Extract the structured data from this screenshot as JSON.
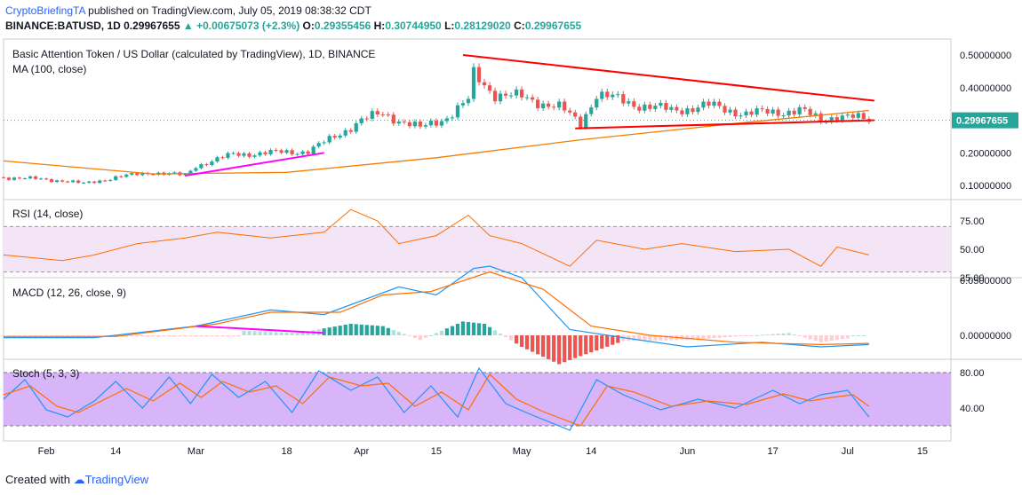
{
  "header": {
    "publisher": "CryptoBriefingTA",
    "published_text": "published on TradingView.com, July 05, 2019 08:38:32 CDT",
    "symbol_line": "BINANCE:BATUSD, 1D",
    "last": "0.29967655",
    "change": "+0.00675073 (+2.3%)",
    "open_label": "O:",
    "open": "0.29355456",
    "high_label": "H:",
    "high": "0.30744950",
    "low_label": "L:",
    "low": "0.28129020",
    "close_label": "C:",
    "close": "0.29967655"
  },
  "colors": {
    "up": "#26a69a",
    "down": "#ef5350",
    "ma": "#f57c00",
    "trend": "#ff0000",
    "magenta": "#ff00ff",
    "macd": "#2196f3",
    "signal": "#ff6d00",
    "osc_fill": "#e1bee7",
    "stoch_fill": "#d8b4f8"
  },
  "panes": {
    "main_title": "Basic Attention Token / US Dollar (calculated by TradingView), 1D, BINANCE",
    "ma_label": "MA (100, close)",
    "rsi_label": "RSI (14, close)",
    "macd_label": "MACD (12, 26, close, 9)",
    "stoch_label": "Stoch (5, 3, 3)"
  },
  "footer": {
    "created_with": "Created with",
    "brand": "TradingView"
  },
  "chart_data": [
    {
      "type": "candlestick",
      "title": "Basic Attention Token / US Dollar (calculated by TradingView), 1D, BINANCE",
      "x_ticks": [
        "Feb",
        "14",
        "Mar",
        "18",
        "Apr",
        "15",
        "May",
        "14",
        "Jun",
        "17",
        "Jul",
        "15"
      ],
      "y_ticks": [
        "0.50000000",
        "0.40000000",
        "0.30000000",
        "0.20000000",
        "0.10000000"
      ],
      "last_price_label": "0.29967655",
      "close_path": [
        [
          "2019-01-24",
          0.125
        ],
        [
          "2019-02-04",
          0.115
        ],
        [
          "2019-02-08",
          0.105
        ],
        [
          "2019-02-14",
          0.125
        ],
        [
          "2019-02-21",
          0.14
        ],
        [
          "2019-02-27",
          0.13
        ],
        [
          "2019-03-01",
          0.16
        ],
        [
          "2019-03-08",
          0.195
        ],
        [
          "2019-03-15",
          0.2
        ],
        [
          "2019-03-22",
          0.205
        ],
        [
          "2019-03-26",
          0.24
        ],
        [
          "2019-04-01",
          0.3
        ],
        [
          "2019-04-05",
          0.32
        ],
        [
          "2019-04-12",
          0.275
        ],
        [
          "2019-04-17",
          0.31
        ],
        [
          "2019-04-21",
          0.36
        ],
        [
          "2019-04-22",
          0.44
        ],
        [
          "2019-04-26",
          0.38
        ],
        [
          "2019-05-01",
          0.37
        ],
        [
          "2019-05-08",
          0.34
        ],
        [
          "2019-05-12",
          0.29
        ],
        [
          "2019-05-15",
          0.38
        ],
        [
          "2019-05-22",
          0.35
        ],
        [
          "2019-05-29",
          0.33
        ],
        [
          "2019-06-05",
          0.345
        ],
        [
          "2019-06-12",
          0.32
        ],
        [
          "2019-06-17",
          0.325
        ],
        [
          "2019-06-22",
          0.33
        ],
        [
          "2019-06-26",
          0.3
        ],
        [
          "2019-06-29",
          0.315
        ],
        [
          "2019-07-05",
          0.29967655
        ]
      ],
      "ma100_path": [
        [
          "2019-01-24",
          0.175
        ],
        [
          "2019-02-21",
          0.135
        ],
        [
          "2019-03-18",
          0.14
        ],
        [
          "2019-04-15",
          0.185
        ],
        [
          "2019-05-12",
          0.24
        ],
        [
          "2019-06-10",
          0.29
        ],
        [
          "2019-07-05",
          0.33
        ]
      ],
      "trendlines": [
        {
          "color": "trend",
          "points": [
            [
              "2019-04-20",
              0.5
            ],
            [
              "2019-07-06",
              0.36
            ]
          ]
        },
        {
          "color": "trend",
          "points": [
            [
              "2019-05-11",
              0.275
            ],
            [
              "2019-07-06",
              0.3
            ]
          ]
        },
        {
          "color": "magenta",
          "points": [
            [
              "2019-02-27",
              0.13
            ],
            [
              "2019-03-25",
              0.2
            ]
          ]
        }
      ]
    },
    {
      "type": "line",
      "title": "RSI (14, close)",
      "y_ticks": [
        "75.00",
        "50.00",
        "25.00"
      ],
      "band": [
        30,
        70
      ],
      "path": [
        [
          "2019-01-24",
          45
        ],
        [
          "2019-02-04",
          40
        ],
        [
          "2019-02-10",
          45
        ],
        [
          "2019-02-18",
          55
        ],
        [
          "2019-02-27",
          60
        ],
        [
          "2019-03-05",
          65
        ],
        [
          "2019-03-15",
          60
        ],
        [
          "2019-03-25",
          65
        ],
        [
          "2019-03-30",
          85
        ],
        [
          "2019-04-04",
          75
        ],
        [
          "2019-04-08",
          55
        ],
        [
          "2019-04-15",
          62
        ],
        [
          "2019-04-21",
          80
        ],
        [
          "2019-04-25",
          62
        ],
        [
          "2019-05-01",
          55
        ],
        [
          "2019-05-10",
          35
        ],
        [
          "2019-05-15",
          58
        ],
        [
          "2019-05-24",
          50
        ],
        [
          "2019-05-31",
          55
        ],
        [
          "2019-06-10",
          48
        ],
        [
          "2019-06-20",
          50
        ],
        [
          "2019-06-26",
          35
        ],
        [
          "2019-06-29",
          52
        ],
        [
          "2019-07-05",
          45
        ]
      ]
    },
    {
      "type": "line",
      "title": "MACD (12, 26, close, 9)",
      "y_ticks": [
        "0.05000000",
        "0.00000000"
      ],
      "series": [
        {
          "color": "macd",
          "path": [
            [
              "2019-01-24",
              -0.002
            ],
            [
              "2019-02-10",
              -0.002
            ],
            [
              "2019-03-01",
              0.008
            ],
            [
              "2019-03-15",
              0.022
            ],
            [
              "2019-03-25",
              0.018
            ],
            [
              "2019-04-01",
              0.03
            ],
            [
              "2019-04-08",
              0.042
            ],
            [
              "2019-04-15",
              0.035
            ],
            [
              "2019-04-22",
              0.058
            ],
            [
              "2019-04-25",
              0.06
            ],
            [
              "2019-05-01",
              0.05
            ],
            [
              "2019-05-10",
              0.005
            ],
            [
              "2019-05-20",
              -0.002
            ],
            [
              "2019-06-01",
              -0.01
            ],
            [
              "2019-06-15",
              -0.006
            ],
            [
              "2019-06-26",
              -0.01
            ],
            [
              "2019-07-05",
              -0.008
            ]
          ]
        },
        {
          "color": "signal",
          "path": [
            [
              "2019-01-24",
              -0.001
            ],
            [
              "2019-02-14",
              -0.001
            ],
            [
              "2019-03-05",
              0.01
            ],
            [
              "2019-03-15",
              0.02
            ],
            [
              "2019-03-28",
              0.02
            ],
            [
              "2019-04-05",
              0.035
            ],
            [
              "2019-04-14",
              0.038
            ],
            [
              "2019-04-25",
              0.055
            ],
            [
              "2019-05-05",
              0.04
            ],
            [
              "2019-05-14",
              0.008
            ],
            [
              "2019-05-25",
              0.0
            ],
            [
              "2019-06-10",
              -0.006
            ],
            [
              "2019-06-26",
              -0.008
            ],
            [
              "2019-07-05",
              -0.007
            ]
          ]
        },
        {
          "color": "magenta",
          "path": [
            [
              "2019-03-01",
              0.008
            ],
            [
              "2019-03-25",
              0.002
            ]
          ]
        }
      ],
      "histogram": [
        [
          "2019-03-10",
          0.004
        ],
        [
          "2019-03-20",
          0.002
        ],
        [
          "2019-03-30",
          0.01
        ],
        [
          "2019-04-05",
          0.008
        ],
        [
          "2019-04-12",
          -0.004
        ],
        [
          "2019-04-20",
          0.012
        ],
        [
          "2019-04-24",
          0.01
        ],
        [
          "2019-05-01",
          -0.01
        ],
        [
          "2019-05-08",
          -0.025
        ],
        [
          "2019-05-12",
          -0.018
        ],
        [
          "2019-05-20",
          -0.005
        ],
        [
          "2019-06-01",
          -0.004
        ],
        [
          "2019-06-20",
          0.002
        ],
        [
          "2019-06-26",
          -0.006
        ],
        [
          "2019-07-02",
          -0.002
        ]
      ]
    },
    {
      "type": "line",
      "title": "Stoch (5, 3, 3)",
      "y_ticks": [
        "80.00",
        "40.00"
      ],
      "band": [
        20,
        80
      ],
      "series": [
        {
          "color": "macd",
          "path": [
            [
              "2019-01-24",
              50
            ],
            [
              "2019-01-28",
              72
            ],
            [
              "2019-02-01",
              38
            ],
            [
              "2019-02-05",
              30
            ],
            [
              "2019-02-10",
              48
            ],
            [
              "2019-02-14",
              70
            ],
            [
              "2019-02-19",
              40
            ],
            [
              "2019-02-24",
              75
            ],
            [
              "2019-02-28",
              45
            ],
            [
              "2019-03-04",
              78
            ],
            [
              "2019-03-09",
              52
            ],
            [
              "2019-03-14",
              70
            ],
            [
              "2019-03-19",
              35
            ],
            [
              "2019-03-24",
              82
            ],
            [
              "2019-03-30",
              60
            ],
            [
              "2019-04-04",
              75
            ],
            [
              "2019-04-09",
              35
            ],
            [
              "2019-04-14",
              65
            ],
            [
              "2019-04-19",
              30
            ],
            [
              "2019-04-23",
              85
            ],
            [
              "2019-04-28",
              45
            ],
            [
              "2019-05-03",
              32
            ],
            [
              "2019-05-10",
              15
            ],
            [
              "2019-05-15",
              72
            ],
            [
              "2019-05-20",
              55
            ],
            [
              "2019-05-27",
              38
            ],
            [
              "2019-06-03",
              50
            ],
            [
              "2019-06-10",
              40
            ],
            [
              "2019-06-17",
              60
            ],
            [
              "2019-06-22",
              45
            ],
            [
              "2019-06-26",
              55
            ],
            [
              "2019-07-01",
              60
            ],
            [
              "2019-07-05",
              30
            ]
          ]
        },
        {
          "color": "signal",
          "path": [
            [
              "2019-01-24",
              55
            ],
            [
              "2019-01-29",
              65
            ],
            [
              "2019-02-03",
              42
            ],
            [
              "2019-02-07",
              35
            ],
            [
              "2019-02-12",
              50
            ],
            [
              "2019-02-16",
              62
            ],
            [
              "2019-02-21",
              48
            ],
            [
              "2019-02-26",
              68
            ],
            [
              "2019-03-02",
              52
            ],
            [
              "2019-03-06",
              70
            ],
            [
              "2019-03-11",
              58
            ],
            [
              "2019-03-16",
              65
            ],
            [
              "2019-03-21",
              45
            ],
            [
              "2019-03-26",
              75
            ],
            [
              "2019-04-01",
              65
            ],
            [
              "2019-04-06",
              68
            ],
            [
              "2019-04-11",
              42
            ],
            [
              "2019-04-16",
              58
            ],
            [
              "2019-04-21",
              38
            ],
            [
              "2019-04-25",
              78
            ],
            [
              "2019-04-30",
              50
            ],
            [
              "2019-05-05",
              36
            ],
            [
              "2019-05-12",
              20
            ],
            [
              "2019-05-17",
              65
            ],
            [
              "2019-05-22",
              58
            ],
            [
              "2019-05-29",
              42
            ],
            [
              "2019-06-05",
              48
            ],
            [
              "2019-06-12",
              44
            ],
            [
              "2019-06-19",
              56
            ],
            [
              "2019-06-24",
              48
            ],
            [
              "2019-06-28",
              52
            ],
            [
              "2019-07-02",
              55
            ],
            [
              "2019-07-05",
              42
            ]
          ]
        }
      ]
    }
  ]
}
